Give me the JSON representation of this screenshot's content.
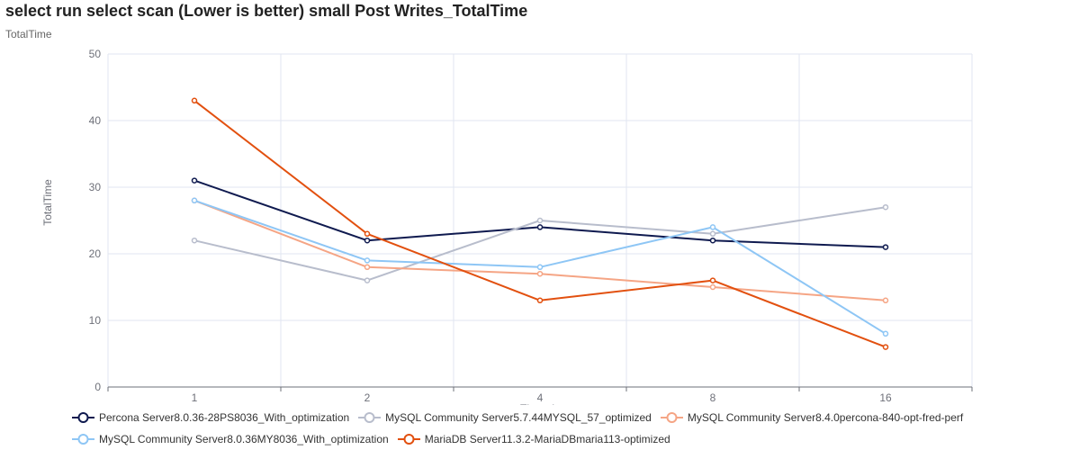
{
  "title": "select run select scan (Lower is better)  small Post Writes_TotalTime",
  "subtitle": "TotalTime",
  "chart_data": {
    "type": "line",
    "title": "select run select scan (Lower is better)  small Post Writes_TotalTime",
    "xlabel": "Threads",
    "ylabel": "TotalTime",
    "categories": [
      "1",
      "2",
      "4",
      "8",
      "16"
    ],
    "ylim": [
      0,
      50
    ],
    "yticks": [
      0,
      10,
      20,
      30,
      40,
      50
    ],
    "grid": true,
    "legend_position": "bottom",
    "series": [
      {
        "name": "Percona Server8.0.36-28PS8036_With_optimization",
        "color": "#0f1a4f",
        "values": [
          31,
          22,
          24,
          22,
          21
        ]
      },
      {
        "name": "MySQL Community Server5.7.44MYSQL_57_optimized",
        "color": "#b8bdcc",
        "values": [
          22,
          16,
          25,
          23,
          27
        ]
      },
      {
        "name": "MySQL Community Server8.4.0percona-840-opt-fred-perf",
        "color": "#f5a585",
        "values": [
          28,
          18,
          17,
          15,
          13
        ]
      },
      {
        "name": "MySQL Community Server8.0.36MY8036_With_optimization",
        "color": "#8ec6f5",
        "values": [
          28,
          19,
          18,
          24,
          8
        ]
      },
      {
        "name": "MariaDB Server11.3.2-MariaDBmaria113-optimized",
        "color": "#e2500f",
        "values": [
          43,
          23,
          13,
          16,
          6
        ]
      }
    ]
  }
}
